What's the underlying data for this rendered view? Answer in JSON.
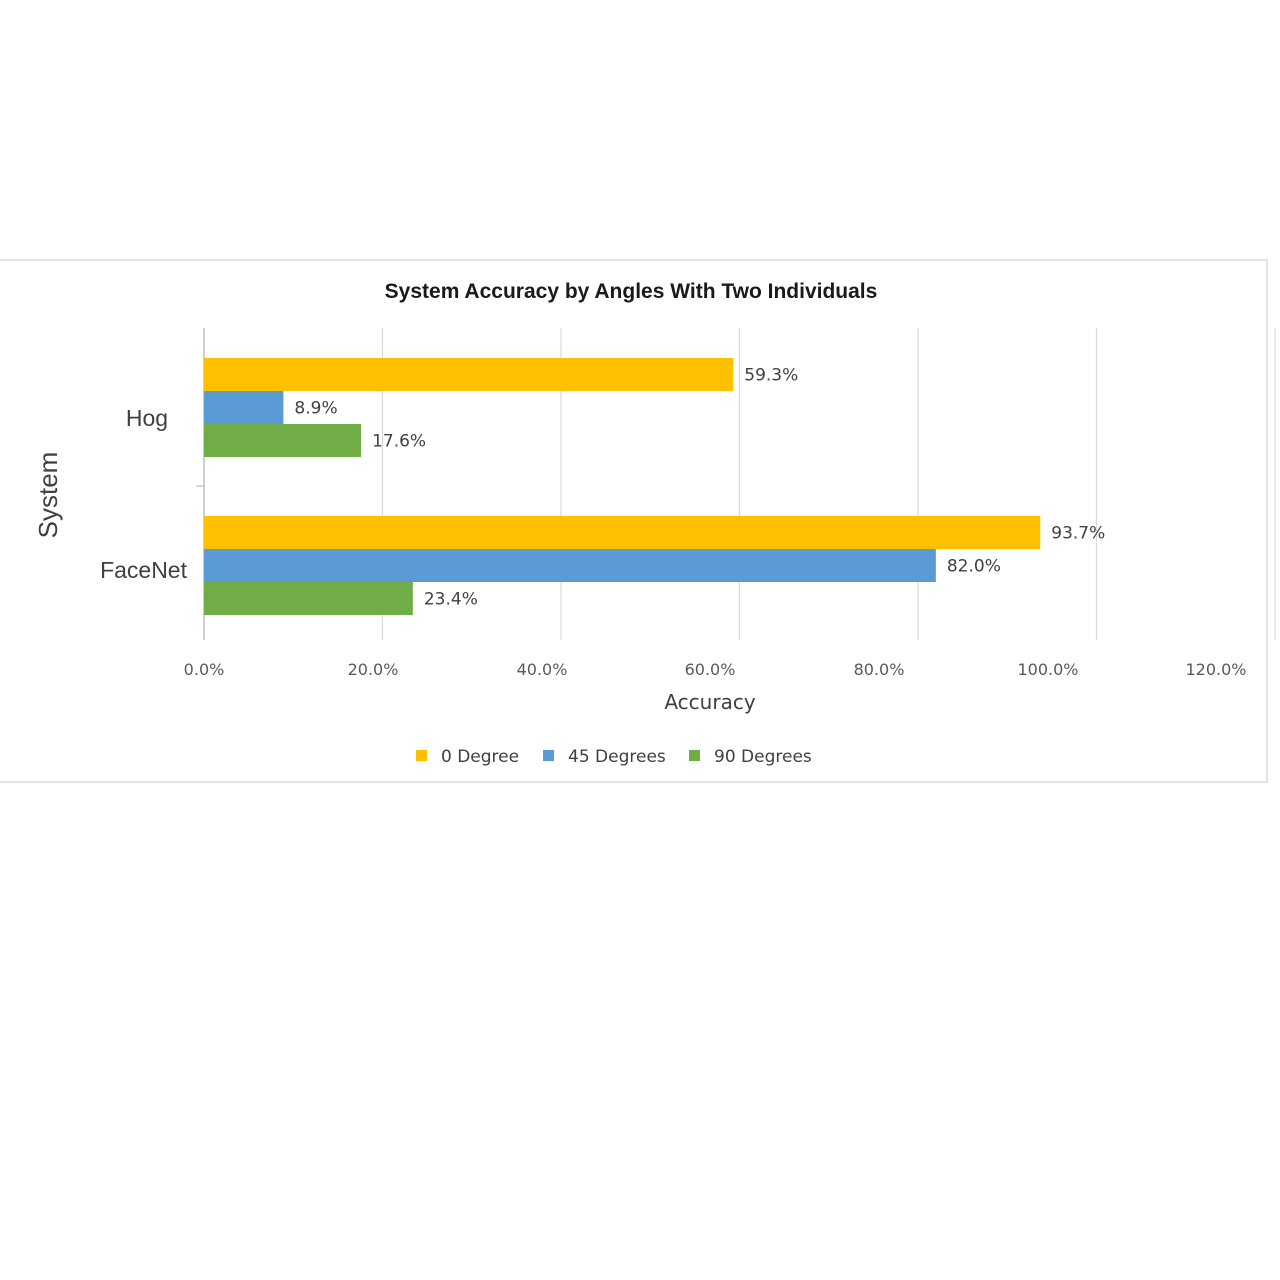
{
  "chart_data": {
    "type": "bar",
    "orientation": "horizontal",
    "title": "System Accuracy by Angles With Two Individuals",
    "xlabel": "Accuracy",
    "ylabel": "System",
    "categories": [
      "Hog",
      "FaceNet"
    ],
    "xlim": [
      0,
      120
    ],
    "x_ticks": [
      "0.0%",
      "20.0%",
      "40.0%",
      "60.0%",
      "80.0%",
      "100.0%",
      "120.0%"
    ],
    "series": [
      {
        "name": "0 Degree",
        "color": "#FFC000",
        "values": [
          59.3,
          93.7
        ],
        "labels": [
          "59.3%",
          "93.7%"
        ]
      },
      {
        "name": "45 Degrees",
        "color": "#5B9BD5",
        "values": [
          8.9,
          82.0
        ],
        "labels": [
          "8.9%",
          "82.0%"
        ]
      },
      {
        "name": "90 Degrees",
        "color": "#70AD47",
        "values": [
          17.6,
          23.4
        ],
        "labels": [
          "17.6%",
          "23.4%"
        ]
      }
    ],
    "grid": true,
    "legend": "bottom"
  }
}
